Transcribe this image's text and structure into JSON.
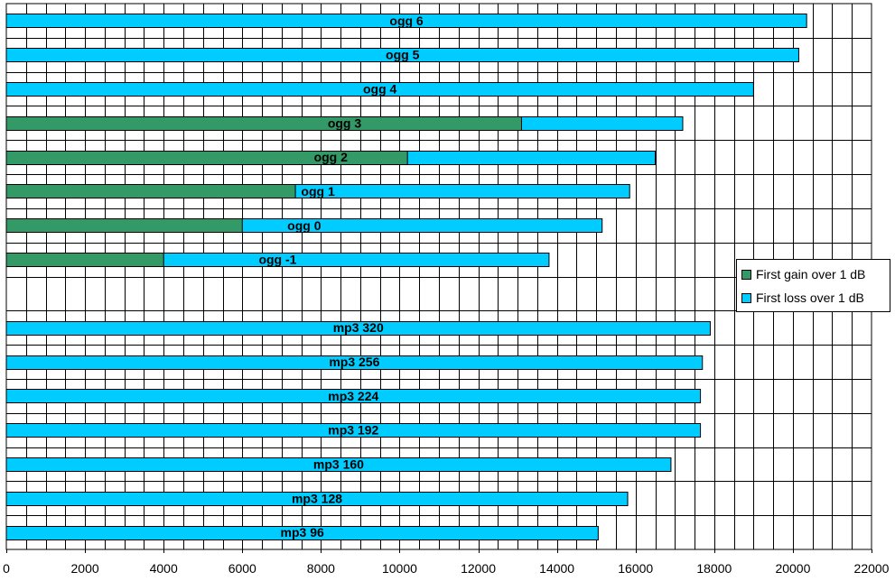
{
  "chart_data": {
    "type": "bar",
    "orientation": "horizontal",
    "title": "",
    "xlabel": "",
    "ylabel": "",
    "xlim": [
      0,
      22000
    ],
    "x_ticks": [
      0,
      2000,
      4000,
      6000,
      8000,
      10000,
      12000,
      14000,
      16000,
      18000,
      20000,
      22000
    ],
    "grid": true,
    "legend_position": "right",
    "categories": [
      "ogg 6",
      "ogg 5",
      "ogg 4",
      "ogg 3",
      "ogg 2",
      "ogg 1",
      "ogg 0",
      "ogg -1",
      "",
      "mp3 320",
      "mp3 256",
      "mp3 224",
      "mp3 192",
      "mp3 160",
      "mp3 128",
      "mp3 96"
    ],
    "series": [
      {
        "name": "First gain over 1 dB",
        "color": "#339966",
        "values": [
          null,
          null,
          null,
          13100,
          10200,
          7350,
          6000,
          4000,
          null,
          null,
          null,
          null,
          null,
          null,
          null,
          null
        ]
      },
      {
        "name": "First loss over 1 dB",
        "color": "#00CCFF",
        "values": [
          20350,
          20150,
          19000,
          17200,
          16500,
          15850,
          15150,
          13800,
          null,
          17900,
          17700,
          17650,
          17650,
          16900,
          15800,
          15050
        ]
      }
    ]
  }
}
